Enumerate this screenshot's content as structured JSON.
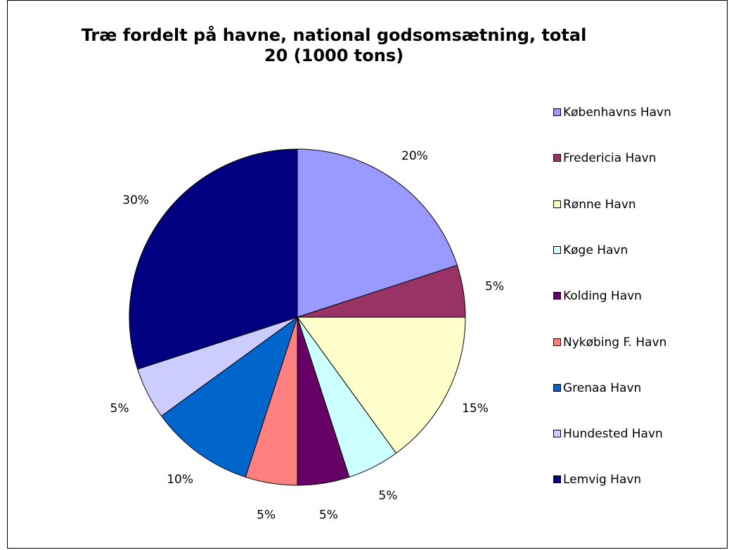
{
  "chart_data": {
    "type": "pie",
    "title_lines": [
      "Træ fordelt på havne, national godsomsætning, total",
      "20 (1000 tons)"
    ],
    "categories": [
      "Københavns Havn",
      "Fredericia Havn",
      "Rønne Havn",
      "Køge Havn",
      "Kolding Havn",
      "Nykøbing F. Havn",
      "Grenaa Havn",
      "Hundested Havn",
      "Lemvig Havn"
    ],
    "values": [
      20,
      5,
      15,
      5,
      5,
      5,
      10,
      5,
      30
    ],
    "labels": [
      "20%",
      "5%",
      "15%",
      "5%",
      "5%",
      "5%",
      "10%",
      "5%",
      "30%"
    ],
    "colors": [
      "#9999FF",
      "#993366",
      "#FFFFCC",
      "#CCFFFF",
      "#660066",
      "#FF8080",
      "#0066CC",
      "#CCCCFF",
      "#000080"
    ],
    "legend_position": "right"
  }
}
